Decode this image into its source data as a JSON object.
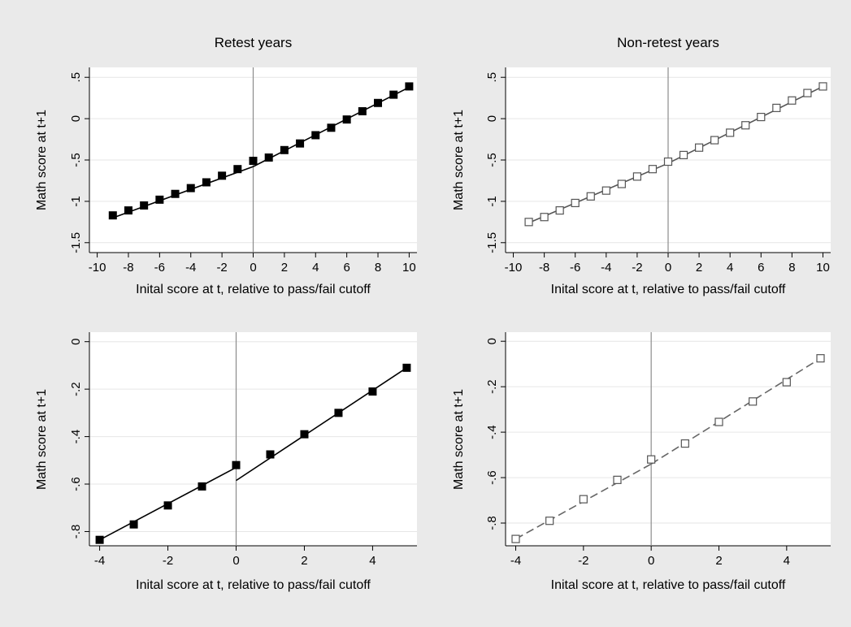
{
  "figure": {
    "background": "#eaeaea",
    "plot_background": "#ffffff",
    "gridline_color": "#e6e6e6",
    "cutoff_line_color": "#8c8c8c"
  },
  "chart_data": [
    {
      "id": "top-left",
      "type": "scatter",
      "title": "Retest years",
      "xlabel": "Inital score at t, relative to pass/fail cutoff",
      "ylabel": "Math score at t+1",
      "xlim": [
        -10.5,
        10.5
      ],
      "ylim": [
        -1.62,
        0.62
      ],
      "xticks": [
        -10,
        -8,
        -6,
        -4,
        -2,
        0,
        2,
        4,
        6,
        8,
        10
      ],
      "xtick_labels": [
        "-10",
        "-8",
        "-6",
        "-4",
        "-2",
        "0",
        "2",
        "4",
        "6",
        "8",
        "10"
      ],
      "yticks": [
        -1.5,
        -1,
        -0.5,
        0,
        0.5
      ],
      "ytick_labels": [
        "-1.5",
        "-1",
        "-.5",
        "0",
        ".5"
      ],
      "grid": true,
      "cutoff_x": 0,
      "marker": "filled-square",
      "marker_color": "#000000",
      "x": [
        -9,
        -8,
        -7,
        -6,
        -5,
        -4,
        -3,
        -2,
        -1,
        0,
        1,
        2,
        3,
        4,
        5,
        6,
        7,
        8,
        9,
        10
      ],
      "y": [
        -1.17,
        -1.11,
        -1.05,
        -0.98,
        -0.91,
        -0.84,
        -0.77,
        -0.69,
        -0.61,
        -0.51,
        -0.47,
        -0.38,
        -0.3,
        -0.2,
        -0.11,
        -0.01,
        0.09,
        0.19,
        0.29,
        0.39
      ],
      "fit_lines": [
        {
          "x": [
            -9,
            0
          ],
          "y": [
            -1.2,
            -0.58
          ],
          "color": "#000000",
          "dashed": false
        },
        {
          "x": [
            0,
            10
          ],
          "y": [
            -0.58,
            0.38
          ],
          "color": "#000000",
          "dashed": false
        }
      ]
    },
    {
      "id": "top-right",
      "type": "scatter",
      "title": "Non-retest years",
      "xlabel": "Inital score at t, relative to pass/fail cutoff",
      "ylabel": "Math score at t+1",
      "xlim": [
        -10.5,
        10.5
      ],
      "ylim": [
        -1.62,
        0.62
      ],
      "xticks": [
        -10,
        -8,
        -6,
        -4,
        -2,
        0,
        2,
        4,
        6,
        8,
        10
      ],
      "xtick_labels": [
        "-10",
        "-8",
        "-6",
        "-4",
        "-2",
        "0",
        "2",
        "4",
        "6",
        "8",
        "10"
      ],
      "yticks": [
        -1.5,
        -1,
        -0.5,
        0,
        0.5
      ],
      "ytick_labels": [
        "-1.5",
        "-1",
        "-.5",
        "0",
        ".5"
      ],
      "grid": true,
      "cutoff_x": 0,
      "marker": "hollow-square",
      "marker_color": "#555555",
      "x": [
        -9,
        -8,
        -7,
        -6,
        -5,
        -4,
        -3,
        -2,
        -1,
        0,
        1,
        2,
        3,
        4,
        5,
        6,
        7,
        8,
        9,
        10
      ],
      "y": [
        -1.25,
        -1.19,
        -1.11,
        -1.02,
        -0.94,
        -0.87,
        -0.79,
        -0.7,
        -0.61,
        -0.52,
        -0.44,
        -0.35,
        -0.26,
        -0.17,
        -0.08,
        0.02,
        0.13,
        0.22,
        0.31,
        0.39
      ],
      "fit_lines": [
        {
          "x": [
            -9,
            0
          ],
          "y": [
            -1.26,
            -0.54
          ],
          "color": "#555555",
          "dashed": false
        },
        {
          "x": [
            0,
            10
          ],
          "y": [
            -0.54,
            0.39
          ],
          "color": "#555555",
          "dashed": false
        }
      ]
    },
    {
      "id": "bottom-left",
      "type": "scatter",
      "title": "",
      "xlabel": "Inital score at t, relative to pass/fail cutoff",
      "ylabel": "Math score at t+1",
      "xlim": [
        -4.3,
        5.3
      ],
      "ylim": [
        -0.86,
        0.04
      ],
      "xticks": [
        -4,
        -2,
        0,
        2,
        4
      ],
      "xtick_labels": [
        "-4",
        "-2",
        "0",
        "2",
        "4"
      ],
      "yticks": [
        -0.8,
        -0.6,
        -0.4,
        -0.2,
        0
      ],
      "ytick_labels": [
        "-.8",
        "-.6",
        "-.4",
        "-.2",
        "0"
      ],
      "grid": true,
      "cutoff_x": 0,
      "marker": "filled-square",
      "marker_color": "#000000",
      "x": [
        -4,
        -3,
        -2,
        -1,
        0,
        1,
        2,
        3,
        4,
        5
      ],
      "y": [
        -0.835,
        -0.77,
        -0.69,
        -0.61,
        -0.52,
        -0.475,
        -0.39,
        -0.3,
        -0.21,
        -0.11
      ],
      "fit_lines": [
        {
          "x": [
            -4,
            0
          ],
          "y": [
            -0.835,
            -0.53
          ],
          "color": "#000000",
          "dashed": false
        },
        {
          "x": [
            0,
            5
          ],
          "y": [
            -0.585,
            -0.11
          ],
          "color": "#000000",
          "dashed": false
        }
      ]
    },
    {
      "id": "bottom-right",
      "type": "scatter",
      "title": "",
      "xlabel": "Inital score at t, relative to pass/fail cutoff",
      "ylabel": "Math score at t+1",
      "xlim": [
        -4.3,
        5.3
      ],
      "ylim": [
        -0.9,
        0.04
      ],
      "xticks": [
        -4,
        -2,
        0,
        2,
        4
      ],
      "xtick_labels": [
        "-4",
        "-2",
        "0",
        "2",
        "4"
      ],
      "yticks": [
        -0.8,
        -0.6,
        -0.4,
        -0.2,
        0
      ],
      "ytick_labels": [
        "-.8",
        "-.6",
        "-.4",
        "-.2",
        "0"
      ],
      "grid": true,
      "cutoff_x": 0,
      "marker": "hollow-square",
      "marker_color": "#555555",
      "x": [
        -4,
        -3,
        -2,
        -1,
        0,
        1,
        2,
        3,
        4,
        5
      ],
      "y": [
        -0.87,
        -0.79,
        -0.695,
        -0.61,
        -0.52,
        -0.45,
        -0.355,
        -0.265,
        -0.18,
        -0.075
      ],
      "fit_lines": [
        {
          "x": [
            -4,
            0
          ],
          "y": [
            -0.87,
            -0.54
          ],
          "color": "#666666",
          "dashed": true
        },
        {
          "x": [
            0,
            5
          ],
          "y": [
            -0.54,
            -0.075
          ],
          "color": "#666666",
          "dashed": true
        }
      ]
    }
  ]
}
